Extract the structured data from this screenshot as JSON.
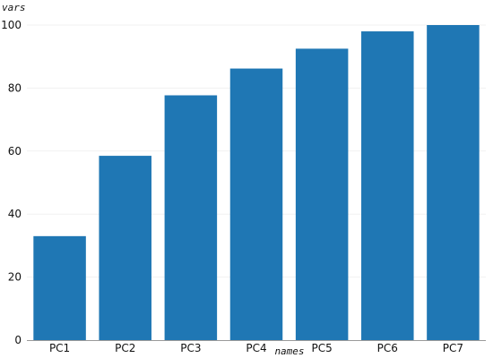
{
  "chart_data": {
    "type": "bar",
    "categories": [
      "PC1",
      "PC2",
      "PC3",
      "PC4",
      "PC5",
      "PC6",
      "PC7"
    ],
    "values": [
      33,
      58.5,
      77.7,
      86.2,
      92.5,
      98,
      100
    ],
    "xlabel": "names",
    "ylabel": "vars",
    "ylim": [
      0,
      100
    ],
    "yticks": [
      0,
      20,
      40,
      60,
      80,
      100
    ],
    "grid": true,
    "bar_color": "#1f77b4"
  }
}
